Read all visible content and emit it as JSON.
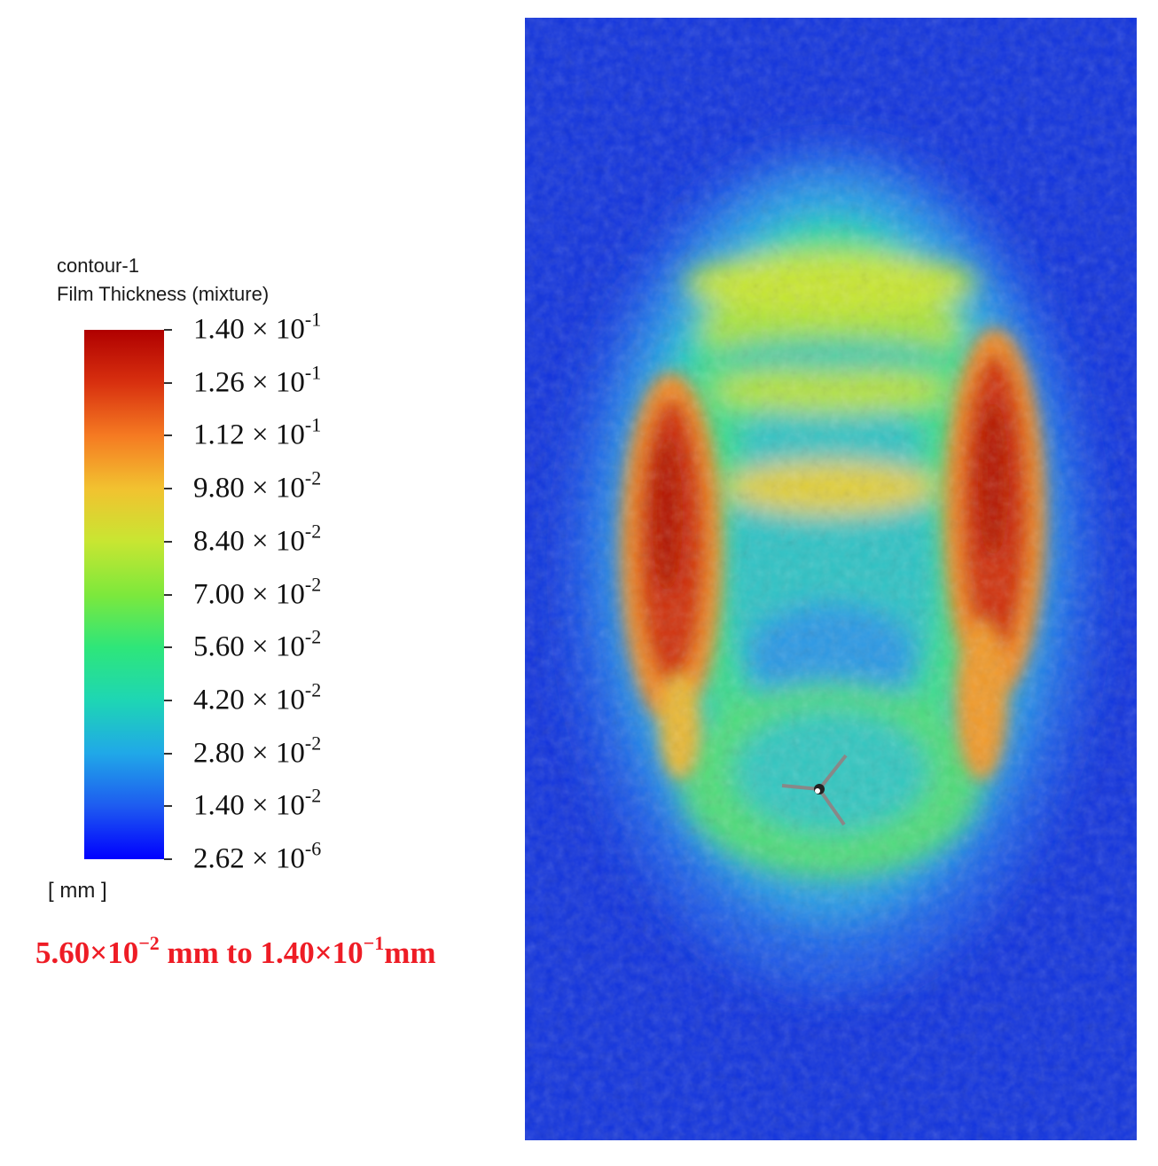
{
  "legend": {
    "name": "contour-1",
    "variable": "Film Thickness (mixture)",
    "unit": "[ mm ]",
    "ticks": [
      {
        "mantissa": "1.40",
        "exponent": "-1",
        "value": 0.14
      },
      {
        "mantissa": "1.26",
        "exponent": "-1",
        "value": 0.126
      },
      {
        "mantissa": "1.12",
        "exponent": "-1",
        "value": 0.112
      },
      {
        "mantissa": "9.80",
        "exponent": "-2",
        "value": 0.098
      },
      {
        "mantissa": "8.40",
        "exponent": "-2",
        "value": 0.084
      },
      {
        "mantissa": "7.00",
        "exponent": "-2",
        "value": 0.07
      },
      {
        "mantissa": "5.60",
        "exponent": "-2",
        "value": 0.056
      },
      {
        "mantissa": "4.20",
        "exponent": "-2",
        "value": 0.042
      },
      {
        "mantissa": "2.80",
        "exponent": "-2",
        "value": 0.028
      },
      {
        "mantissa": "1.40",
        "exponent": "-2",
        "value": 0.014
      },
      {
        "mantissa": "2.62",
        "exponent": "-6",
        "value": 2.62e-06
      }
    ],
    "colors": [
      "#0000ff",
      "#1e5bf0",
      "#20a8e8",
      "#1ed6b4",
      "#2ee67a",
      "#7de83c",
      "#c8e632",
      "#f2c230",
      "#f57a22",
      "#d8300f",
      "#b00000"
    ]
  },
  "range_note": {
    "low_mantissa": "5.60×10",
    "low_exponent": "−2",
    "middle": " mm to ",
    "high_mantissa": "1.40×10",
    "high_exponent": "−1",
    "suffix": "mm"
  },
  "chart_data": {
    "type": "heatmap",
    "colorbar_min": 2.62e-06,
    "colorbar_max": 0.14,
    "unit": "mm",
    "colormap": "rainbow (blue to red)",
    "background_color": "#1133dd"
  }
}
